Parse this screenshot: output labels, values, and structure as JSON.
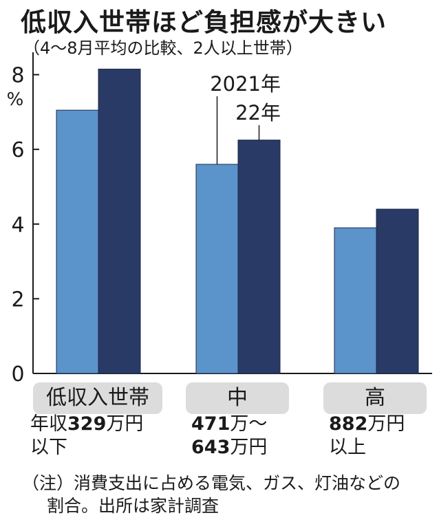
{
  "title": "低収入世帯ほど負担感が大きい",
  "subtitle": "（4～8月平均の比較、2人以上世帯）",
  "chart_data": {
    "type": "bar",
    "title": "低収入世帯ほど負担感が大きい",
    "subtitle": "（4～8月平均の比較、2人以上世帯）",
    "categories": [
      "低収入世帯",
      "中",
      "高"
    ],
    "series": [
      {
        "name": "2021年",
        "values": [
          7.05,
          5.6,
          3.9
        ],
        "color": "#5b93cb"
      },
      {
        "name": "22年",
        "values": [
          8.15,
          6.25,
          4.4
        ],
        "color": "#293a66"
      }
    ],
    "ylabel": "%",
    "ylim": [
      0,
      8.6
    ],
    "yticks": [
      0,
      2,
      4,
      6,
      8
    ],
    "grid": false,
    "legend": "callout-labels-on-middle-group"
  },
  "categories_detail": [
    {
      "label": "低収入世帯",
      "range_line1_pre": "年収",
      "range_line1_num": "329",
      "range_line1_post": "万円",
      "range_line2_num": "",
      "range_line2_post": "以下"
    },
    {
      "label": "中",
      "range_line1_pre": "",
      "range_line1_num": "471",
      "range_line1_post": "万～",
      "range_line2_num": "643",
      "range_line2_post": "万円"
    },
    {
      "label": "高",
      "range_line1_pre": "",
      "range_line1_num": "882",
      "range_line1_post": "万円",
      "range_line2_num": "",
      "range_line2_post": "以上"
    }
  ],
  "note": {
    "line1": "（注）消費支出に占める電気、ガス、灯油などの",
    "line2": "割合。出所は家計調査"
  }
}
